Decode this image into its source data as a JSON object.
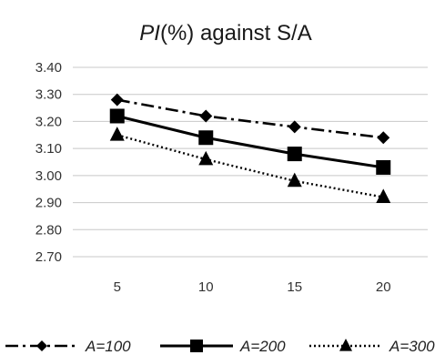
{
  "chart_data": {
    "type": "line",
    "title_italic": "PI",
    "title_rest": "(%) against S/A",
    "x": [
      5,
      10,
      15,
      20
    ],
    "x_tick_labels": [
      "5",
      "10",
      "15",
      "20"
    ],
    "ylim": [
      2.7,
      3.4
    ],
    "y_ticks": [
      3.4,
      3.3,
      3.2,
      3.1,
      3.0,
      2.9,
      2.8,
      2.7
    ],
    "y_tick_labels": [
      "3.40",
      "3.30",
      "3.20",
      "3.10",
      "3.00",
      "2.90",
      "2.80",
      "2.70"
    ],
    "grid": true,
    "legend_position": "bottom",
    "series": [
      {
        "name": "A=100",
        "values": [
          3.28,
          3.22,
          3.18,
          3.14
        ],
        "marker": "diamond",
        "line": "dash-dot",
        "color": "#000000"
      },
      {
        "name": "A=200",
        "values": [
          3.22,
          3.14,
          3.08,
          3.03
        ],
        "marker": "square",
        "line": "solid",
        "color": "#000000"
      },
      {
        "name": "A=300",
        "values": [
          3.15,
          3.06,
          2.98,
          2.92
        ],
        "marker": "triangle",
        "line": "dotted",
        "color": "#000000"
      }
    ]
  }
}
